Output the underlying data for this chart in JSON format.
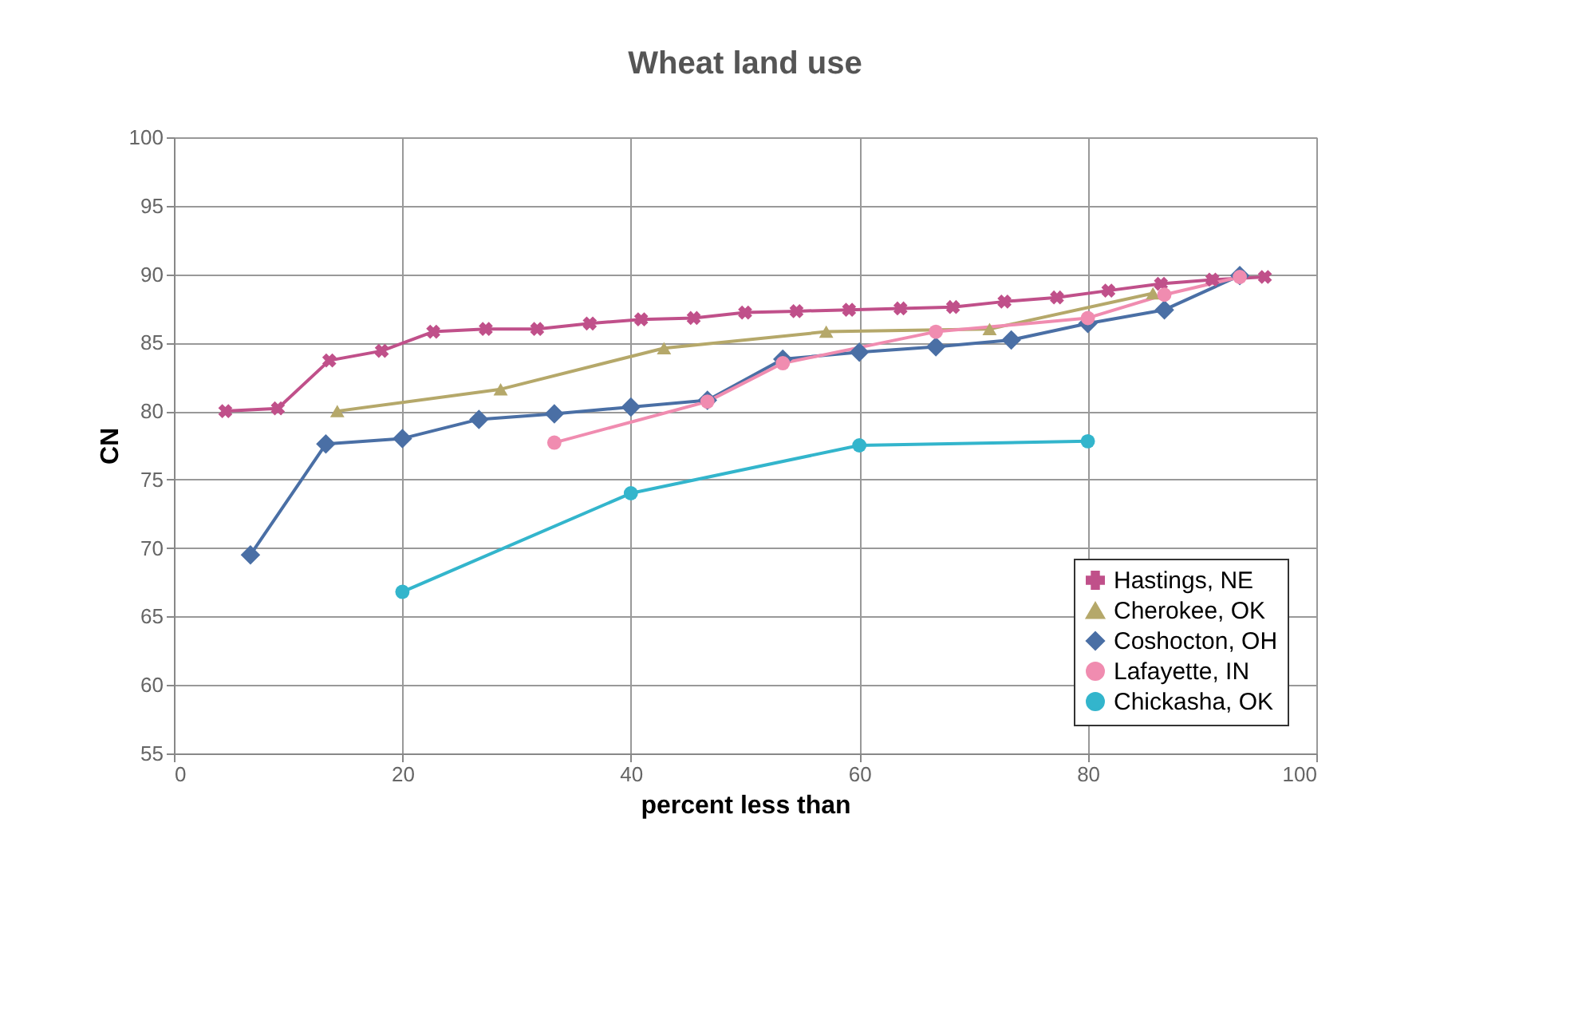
{
  "chart_data": {
    "type": "line",
    "title": "Wheat land use",
    "xlabel": "percent less than",
    "ylabel": "CN",
    "xlim": [
      0,
      100
    ],
    "xticks": [
      0,
      20,
      40,
      60,
      80,
      100
    ],
    "ylim": [
      55,
      100
    ],
    "yticks": [
      55,
      60,
      65,
      70,
      75,
      80,
      85,
      90,
      95,
      100
    ],
    "grid": true,
    "legend": "bottom right",
    "series": [
      {
        "name": "Hastings, NE",
        "color": "#c0508a",
        "marker": "cross",
        "x": [
          4.5,
          9.1,
          13.6,
          18.2,
          22.7,
          27.3,
          31.8,
          36.4,
          40.9,
          45.5,
          50,
          54.5,
          59.1,
          63.6,
          68.2,
          72.7,
          77.3,
          81.8,
          86.4,
          90.9,
          95.5
        ],
        "values": [
          80,
          80.2,
          83.7,
          84.4,
          85.8,
          86,
          86,
          86.4,
          86.7,
          86.8,
          87.2,
          87.3,
          87.4,
          87.5,
          87.6,
          88,
          88.3,
          88.8,
          89.3,
          89.6,
          89.8
        ]
      },
      {
        "name": "Cherokee, OK",
        "color": "#b5a86a",
        "marker": "triangle",
        "x": [
          14.3,
          28.6,
          42.9,
          57.1,
          71.4,
          85.7
        ],
        "values": [
          80,
          81.6,
          84.6,
          85.8,
          86,
          88.6
        ]
      },
      {
        "name": "Coshocton, OH",
        "color": "#4a6fa5",
        "marker": "diamond",
        "x": [
          6.7,
          13.3,
          20,
          26.7,
          33.3,
          40,
          46.7,
          53.3,
          60,
          66.7,
          73.3,
          80,
          86.7,
          93.3
        ],
        "values": [
          69.5,
          77.6,
          78,
          79.4,
          79.8,
          80.3,
          80.8,
          83.8,
          84.3,
          84.7,
          85.2,
          86.4,
          87.4,
          89.9
        ]
      },
      {
        "name": "Lafayette, IN",
        "color": "#f08cb0",
        "marker": "circle",
        "x": [
          33.3,
          46.7,
          53.3,
          66.7,
          80,
          86.7,
          93.3
        ],
        "values": [
          77.7,
          80.7,
          83.5,
          85.8,
          86.8,
          88.5,
          89.8
        ]
      },
      {
        "name": "Chickasha, OK",
        "color": "#33b5cc",
        "marker": "circle",
        "x": [
          20,
          40,
          60,
          80
        ],
        "values": [
          66.8,
          74,
          77.5,
          77.8
        ]
      }
    ]
  }
}
